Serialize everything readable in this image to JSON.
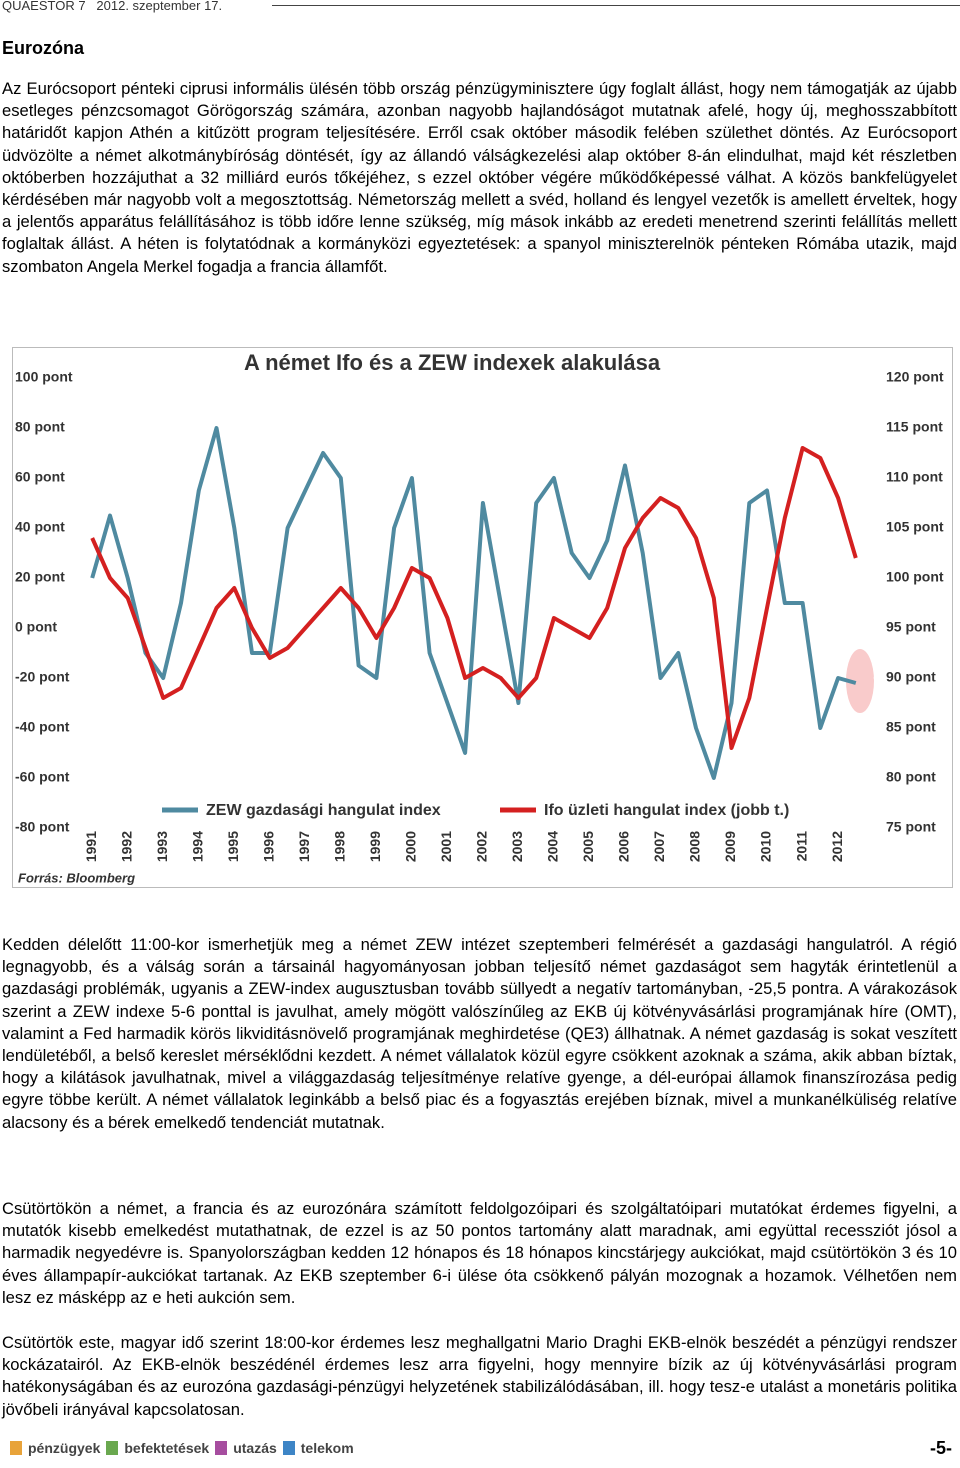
{
  "header": {
    "left": "QUAESTOR 7",
    "date": "2012. szeptember 17."
  },
  "section_title": "Eurozóna",
  "paragraphs": [
    "Az Eurócsoport pénteki ciprusi informális ülésén több ország pénzügyminisztere úgy foglalt állást, hogy nem támogatják az újabb esetleges pénzcsomagot Görögország számára, azonban nagyobb hajlandóságot mutatnak afelé, hogy új, meghosszabbított határidőt kapjon Athén a kitűzött program teljesítésére. Erről csak október második felében születhet döntés. Az Eurócsoport üdvözölte a német alkotmánybíróság döntését, így az állandó válságkezelési alap október 8-án elindulhat, majd két részletben októberben hozzájuthat a 32 milliárd eurós tőkéjéhez, s ezzel október végére működőképessé válhat. A közös bankfelügyelet kérdésében már nagyobb volt a megosztottság. Németország mellett a svéd, holland és lengyel vezetők is amellett érveltek, hogy a jelentős apparátus felállításához is több időre lenne szükség, míg mások inkább az eredeti menetrend szerinti felállítás mellett foglaltak állást. A héten is folytatódnak a kormányközi egyeztetések: a spanyol miniszterelnök pénteken Rómába utazik, majd szombaton Angela Merkel fogadja a francia államfőt.",
    "Kedden délelőtt 11:00-kor ismerhetjük meg a német ZEW intézet szeptemberi felmérését a gazdasági hangulatról. A régió legnagyobb, és a válság során a társainál hagyományosan jobban teljesítő német gazdaságot sem hagyták érintetlenül a gazdasági problémák, ugyanis a ZEW-index augusztusban tovább süllyedt a negatív tartományban, -25,5 pontra. A várakozások szerint a ZEW indexe 5-6 ponttal is javulhat, amely mögött valószínűleg az EKB új kötvényvásárlási programjának híre (OMT), valamint a Fed harmadik körös likviditásnövelő programjának meghirdetése (QE3) állhatnak. A német gazdaság is sokat veszített lendületéből, a belső kereslet mérséklődni kezdett. A német vállalatok közül egyre csökkent azoknak a száma, akik abban bíztak, hogy a kilátások javulhatnak, mivel a világgazdaság teljesítménye relatíve gyenge, a dél-európai államok finanszírozása pedig egyre többe került. A német vállalatok leginkább a belső piac és a fogyasztás erejében bíznak, mivel a munkanélküliség relatíve alacsony és a bérek emelkedő tendenciát mutatnak.",
    "Csütörtökön a német, a francia és az eurozónára számított feldolgozóipari és szolgáltatóipari mutatókat érdemes figyelni, a mutatók kisebb emelkedést mutathatnak, de ezzel is az 50 pontos tartomány alatt maradnak, ami együttal recessziót jósol a harmadik negyedévre is. Spanyolországban kedden 12 hónapos és 18 hónapos kincstárjegy aukciókat, majd csütörtökön 3 és 10 éves állampapír-aukciókat tartanak. Az EKB szeptember 6-i ülése óta csökkenő pályán mozognak a hozamok. Vélhetően nem lesz ez másképp az e heti aukción sem.",
    "Csütörtök este, magyar idő szerint 18:00-kor érdemes lesz meghallgatni Mario Draghi EKB-elnök beszédét a pénzügyi rendszer kockázatairól. Az EKB-elnök beszédénél érdemes lesz arra figyelni, hogy mennyire bízik az új kötvényvásárlási program hatékonyságában és az eurozóna gazdasági-pénzügyi helyzetének stabilizálódásában, ill. hogy tesz-e utalást a monetáris politika jövőbeli irányával kapcsolatosan."
  ],
  "chart_data": {
    "type": "line",
    "title": "A német Ifo és a ZEW indexek alakulása",
    "source": "Forrás: Bloomberg",
    "x": [
      1991.0,
      1991.5,
      1992.0,
      1992.5,
      1993.0,
      1993.5,
      1994.0,
      1994.5,
      1995.0,
      1995.5,
      1996.0,
      1996.5,
      1997.0,
      1997.5,
      1998.0,
      1998.5,
      1999.0,
      1999.5,
      2000.0,
      2000.5,
      2001.0,
      2001.5,
      2002.0,
      2002.5,
      2003.0,
      2003.5,
      2004.0,
      2004.5,
      2005.0,
      2005.5,
      2006.0,
      2006.5,
      2007.0,
      2007.5,
      2008.0,
      2008.5,
      2009.0,
      2009.5,
      2010.0,
      2010.5,
      2011.0,
      2011.5,
      2012.0,
      2012.5
    ],
    "series": [
      {
        "name": "ZEW gazdasági hangulat index",
        "color": "#4f8aa0",
        "values": [
          20,
          45,
          20,
          -10,
          -20,
          10,
          55,
          80,
          40,
          -10,
          -10,
          40,
          55,
          70,
          60,
          -15,
          -20,
          40,
          60,
          -10,
          -30,
          -50,
          50,
          10,
          -30,
          50,
          60,
          30,
          20,
          35,
          65,
          30,
          -20,
          -10,
          -40,
          -60,
          -30,
          50,
          55,
          10,
          10,
          -40,
          -20,
          -22
        ]
      },
      {
        "name": "Ifo üzleti hangulat index (jobb t.)",
        "color": "#d42020",
        "axis": "y2",
        "values": [
          104,
          100,
          98,
          93,
          88,
          89,
          93,
          97,
          99,
          95,
          92,
          93,
          95,
          97,
          99,
          97,
          94,
          97,
          101,
          100,
          96,
          90,
          91,
          90,
          88,
          90,
          96,
          95,
          94,
          97,
          103,
          106,
          108,
          107,
          104,
          98,
          83,
          88,
          97,
          106,
          113,
          112,
          108,
          102
        ]
      }
    ],
    "xlim": [
      1990.6,
      2013.0
    ],
    "xticks": [
      1991,
      1992,
      1993,
      1994,
      1995,
      1996,
      1997,
      1998,
      1999,
      2000,
      2001,
      2002,
      2003,
      2004,
      2005,
      2006,
      2007,
      2008,
      2009,
      2010,
      2011,
      2012
    ],
    "ylim": [
      -80,
      100
    ],
    "yticks": [
      {
        "value": -80,
        "label": "-80 pont"
      },
      {
        "value": -60,
        "label": "-60 pont"
      },
      {
        "value": -40,
        "label": "-40 pont"
      },
      {
        "value": -20,
        "label": "-20 pont"
      },
      {
        "value": 0,
        "label": "0 pont"
      },
      {
        "value": 20,
        "label": "20 pont"
      },
      {
        "value": 40,
        "label": "40 pont"
      },
      {
        "value": 60,
        "label": "60 pont"
      },
      {
        "value": 80,
        "label": "80 pont"
      },
      {
        "value": 100,
        "label": "100 pont"
      }
    ],
    "y2lim": [
      75,
      120
    ],
    "y2ticks": [
      {
        "value": 75,
        "label": "75 pont"
      },
      {
        "value": 80,
        "label": "80 pont"
      },
      {
        "value": 85,
        "label": "85 pont"
      },
      {
        "value": 90,
        "label": "90 pont"
      },
      {
        "value": 95,
        "label": "95 pont"
      },
      {
        "value": 100,
        "label": "100 pont"
      },
      {
        "value": 105,
        "label": "105 pont"
      },
      {
        "value": 110,
        "label": "110 pont"
      },
      {
        "value": 115,
        "label": "115 pont"
      },
      {
        "value": 120,
        "label": "120 pont"
      }
    ]
  },
  "footer": {
    "links": [
      "pénzügyek",
      "befektetések",
      "utazás",
      "telekom"
    ],
    "page": "-5-"
  }
}
